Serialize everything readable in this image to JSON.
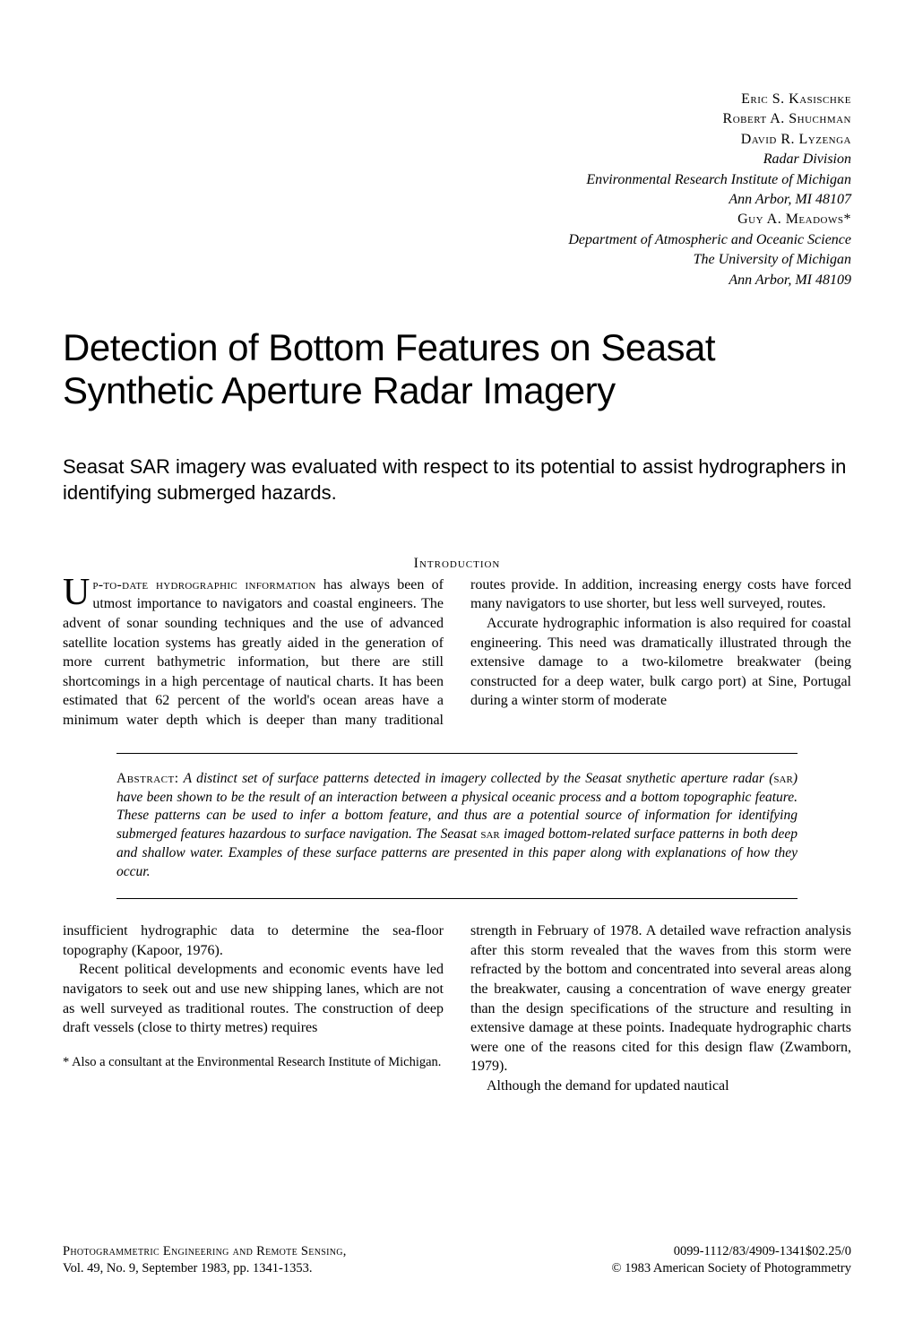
{
  "authors": {
    "name1": "Eric S. Kasischke",
    "name2": "Robert A. Shuchman",
    "name3": "David R. Lyzenga",
    "affil1_line1": "Radar Division",
    "affil1_line2": "Environmental Research Institute of Michigan",
    "affil1_line3": "Ann Arbor, MI 48107",
    "name4": "Guy A. Meadows*",
    "affil2_line1": "Department of Atmospheric and Oceanic Science",
    "affil2_line2": "The University of Michigan",
    "affil2_line3": "Ann Arbor, MI 48109"
  },
  "title": "Detection of Bottom Features on Seasat Synthetic Aperture Radar Imagery",
  "subtitle": "Seasat SAR imagery was evaluated with respect to its potential to assist hydrographers in identifying submerged hazards.",
  "intro_heading": "Introduction",
  "body": {
    "p1_lead": "p-to-date hydrographic information",
    "p1_rest": " has always been of utmost importance to navigators and coastal engineers. The advent of sonar sounding techniques and the use of advanced satellite location systems has greatly aided in the generation of more current bathymetric information, but there are still shortcomings in a high percentage of nautical charts. It has been estimated that 62 percent of the world's ocean areas have",
    "p1_col2": "a minimum water depth which is deeper than many traditional routes provide. In addition, increasing energy costs have forced many navigators to use shorter, but less well surveyed, routes.",
    "p2": "Accurate hydrographic information is also required for coastal engineering. This need was dramatically illustrated through the extensive damage to a two-kilometre breakwater (being constructed for a deep water, bulk cargo port) at Sine, Portugal during a winter storm of moderate"
  },
  "abstract": {
    "label": "Abstract:",
    "text_a": " A distinct set of surface patterns detected in imagery collected by the Seasat snythetic aperture radar (",
    "sar1": "sar",
    "text_b": ") have been shown to be the result of an interaction between a physical oceanic process and a bottom topographic feature. These patterns can be used to infer a bottom feature, and thus are a potential source of information for identifying submerged features hazardous to surface navigation. The Seasat ",
    "sar2": "sar",
    "text_c": " imaged bottom-related surface patterns in both deep and shallow water. Examples of these surface patterns are presented in this paper along with explanations of how they occur."
  },
  "body2": {
    "p3": "insufficient hydrographic data to determine the sea-floor topography (Kapoor, 1976).",
    "p4": "Recent political developments and economic events have led navigators to seek out and use new shipping lanes, which are not as well surveyed as traditional routes. The construction of deep draft vessels (close to thirty metres) requires",
    "p5": "strength in February of 1978. A detailed wave refraction analysis after this storm revealed that the waves from this storm were refracted by the bottom and concentrated into several areas along the breakwater, causing a concentration of wave energy greater than the design specifications of the structure and resulting in extensive damage at these points. Inadequate hydrographic charts were one of the reasons cited for this design flaw (Zwamborn, 1979).",
    "p6": "Although the demand for updated nautical"
  },
  "footnote": "* Also a consultant at the Environmental Research Institute of Michigan.",
  "footer": {
    "pub_name": "Photogrammetric Engineering and Remote Sensing,",
    "pub_issue": "Vol. 49, No. 9, September 1983, pp. 1341-1353.",
    "issn": "0099-1112/83/4909-1341$02.25/0",
    "copyright": "© 1983 American Society of Photogrammetry"
  }
}
